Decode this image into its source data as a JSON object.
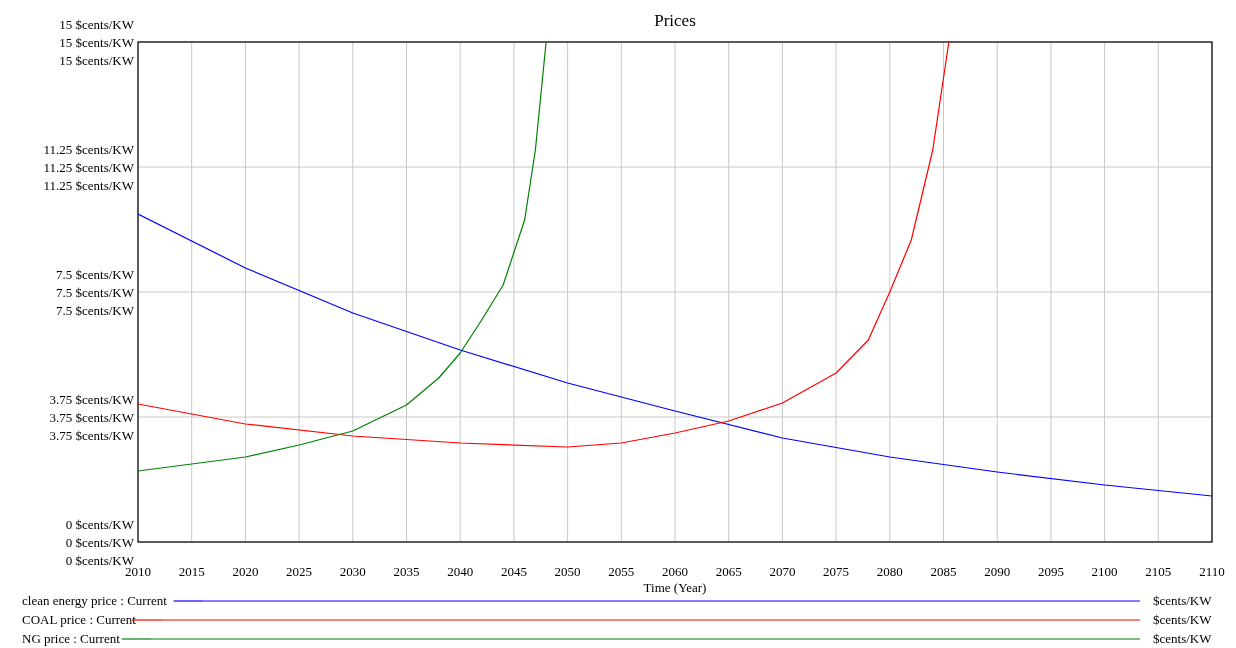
{
  "chart_data": {
    "type": "line",
    "title": "Prices",
    "xlabel": "Time (Year)",
    "annotations": [
      "$cents/KW",
      "$cents/KW",
      "$cents/KW"
    ],
    "xlim": [
      2010,
      2110
    ],
    "xticks": [
      2010,
      2015,
      2020,
      2025,
      2030,
      2035,
      2040,
      2045,
      2050,
      2055,
      2060,
      2065,
      2070,
      2075,
      2080,
      2085,
      2090,
      2095,
      2100,
      2105,
      2110
    ],
    "ylim": [
      0,
      15
    ],
    "yticks": [
      {
        "value": 0,
        "label": "0 $cents/KW"
      },
      {
        "value": 3.75,
        "label": "3.75 $cents/KW"
      },
      {
        "value": 7.5,
        "label": "7.5 $cents/KW"
      },
      {
        "value": 11.25,
        "label": "11.25 $cents/KW"
      },
      {
        "value": 15,
        "label": "15 $cents/KW"
      }
    ],
    "grid": true,
    "legend": "bottom",
    "line_style": "solid",
    "series": [
      {
        "name": "clean energy price : Current",
        "color": "#0000ff",
        "x": [
          2010,
          2020,
          2030,
          2040,
          2050,
          2060,
          2070,
          2080,
          2090,
          2100,
          2110
        ],
        "values": [
          9.84,
          8.22,
          6.87,
          5.76,
          4.77,
          3.93,
          3.12,
          2.55,
          2.1,
          1.71,
          1.38
        ]
      },
      {
        "name": "COAL price : Current",
        "color": "#ff0000",
        "x": [
          2010,
          2020,
          2030,
          2040,
          2050,
          2055,
          2060,
          2065,
          2070,
          2075,
          2078,
          2080,
          2082,
          2084,
          2085.5
        ],
        "values": [
          4.14,
          3.54,
          3.18,
          2.97,
          2.85,
          2.97,
          3.27,
          3.63,
          4.17,
          5.07,
          6.06,
          7.5,
          9.06,
          11.76,
          15
        ]
      },
      {
        "name": "NG price : Current",
        "color": "#008000",
        "x": [
          2010,
          2020,
          2025,
          2030,
          2035,
          2038,
          2040,
          2042,
          2044,
          2046,
          2047,
          2048
        ],
        "values": [
          2.13,
          2.55,
          2.91,
          3.33,
          4.11,
          4.92,
          5.67,
          6.66,
          7.71,
          9.66,
          11.76,
          15
        ]
      }
    ]
  }
}
